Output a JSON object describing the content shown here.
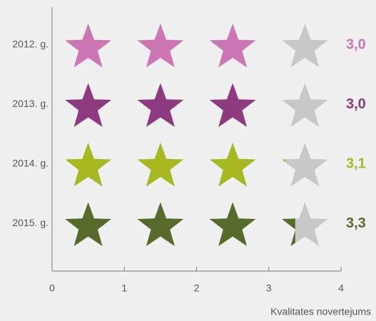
{
  "chart_data": {
    "type": "rating",
    "categories": [
      "2012. g.",
      "2013. g.",
      "2014. g.",
      "2015. g."
    ],
    "values": [
      3.0,
      3.0,
      3.1,
      3.3
    ],
    "value_labels": [
      "3,0",
      "3,0",
      "3,1",
      "3,3"
    ],
    "colors": [
      "#cc77b4",
      "#8e3a80",
      "#a8b820",
      "#566b2a"
    ],
    "empty_color": "#c8c8c8",
    "xlim": [
      0,
      4
    ],
    "xticks": [
      0,
      1,
      2,
      3,
      4
    ],
    "x_label": "Kvalitates novertejums"
  }
}
